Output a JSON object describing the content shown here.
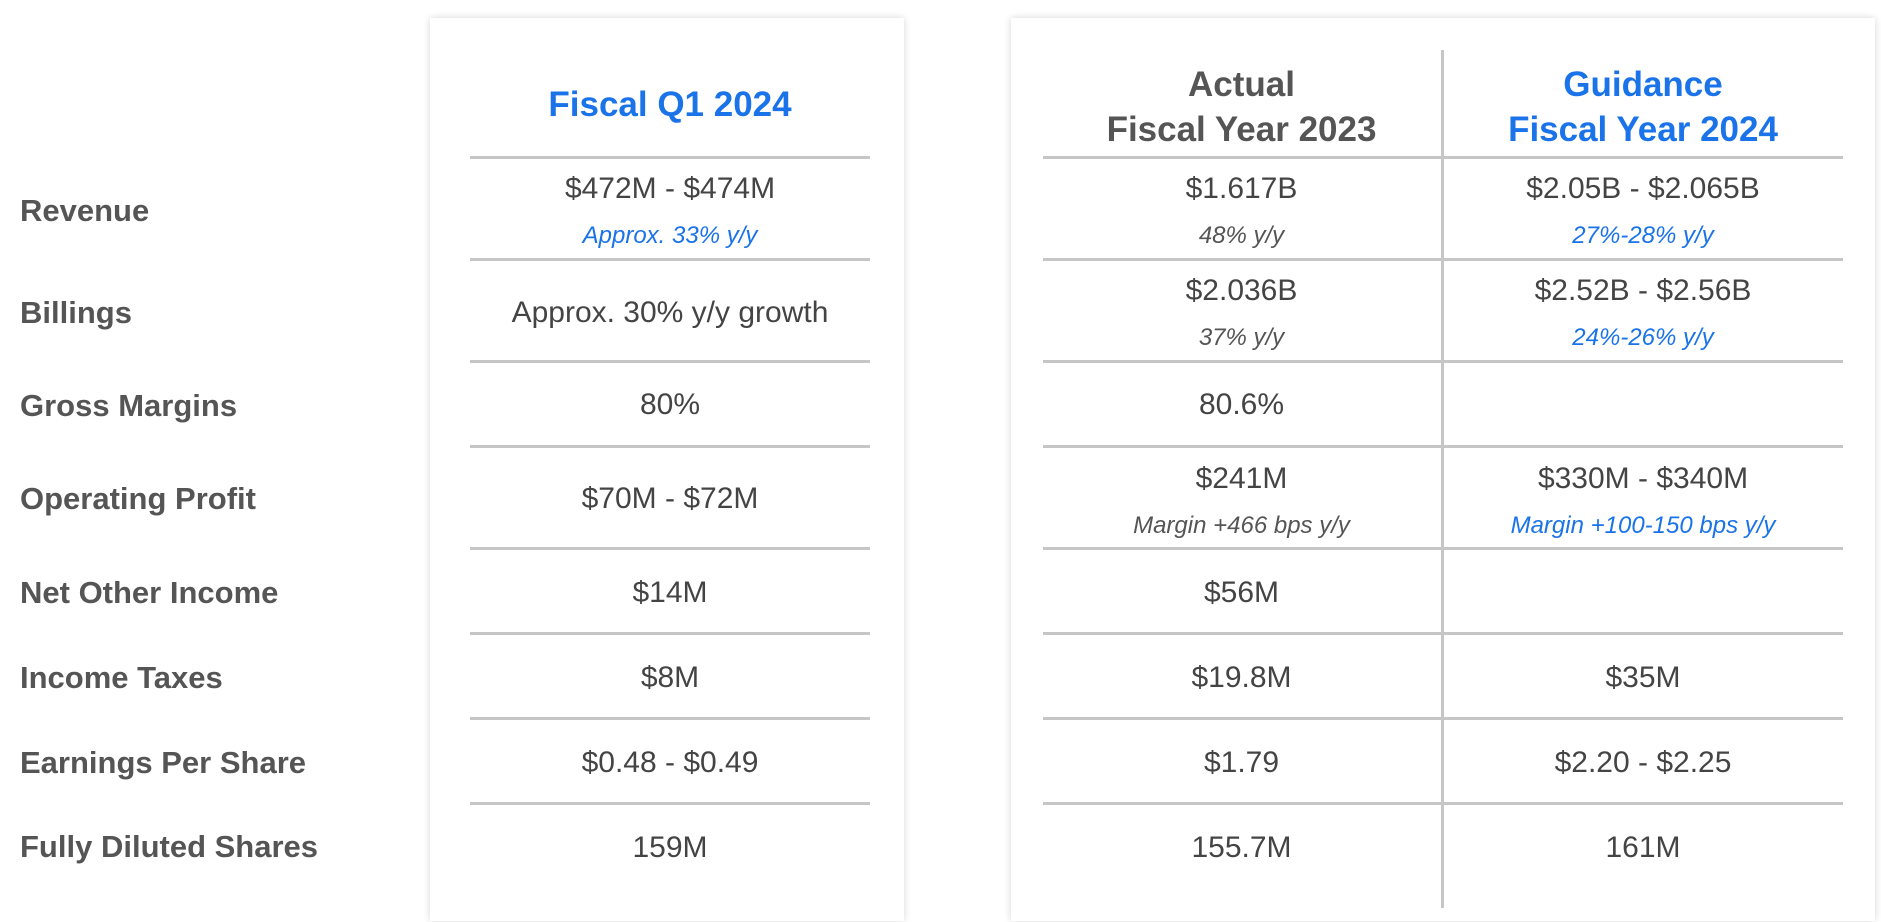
{
  "row_labels": [
    "Revenue",
    "Billings",
    "Gross Margins",
    "Operating Profit",
    "Net Other Income",
    "Income Taxes",
    "Earnings Per Share",
    "Fully Diluted Shares"
  ],
  "q1": {
    "header": "Fiscal Q1 2024",
    "revenue": "$472M - $474M",
    "revenue_note": "Approx. 33% y/y",
    "billings": "Approx. 30% y/y growth",
    "gross_margins": "80%",
    "operating_profit": "$70M - $72M",
    "net_other_income": "$14M",
    "income_taxes": "$8M",
    "eps": "$0.48 - $0.49",
    "diluted_shares": "159M"
  },
  "actual_fy2023": {
    "header_line1": "Actual",
    "header_line2": "Fiscal Year 2023",
    "revenue": "$1.617B",
    "revenue_note": "48% y/y",
    "billings": "$2.036B",
    "billings_note": "37% y/y",
    "gross_margins": "80.6%",
    "operating_profit": "$241M",
    "operating_profit_note": "Margin +466 bps y/y",
    "net_other_income": "$56M",
    "income_taxes": "$19.8M",
    "eps": "$1.79",
    "diluted_shares": "155.7M"
  },
  "guidance_fy2024": {
    "header_line1": "Guidance",
    "header_line2": "Fiscal Year 2024",
    "revenue": "$2.05B - $2.065B",
    "revenue_note": "27%-28% y/y",
    "billings": "$2.52B - $2.56B",
    "billings_note": "24%-26% y/y",
    "operating_profit": "$330M - $340M",
    "operating_profit_note": "Margin +100-150 bps y/y",
    "income_taxes": "$35M",
    "eps": "$2.20 - $2.25",
    "diluted_shares": "161M"
  },
  "colors": {
    "accent_blue": "#1a73e8",
    "text_gray": "#555555",
    "rule_gray": "#c6c6c6"
  }
}
